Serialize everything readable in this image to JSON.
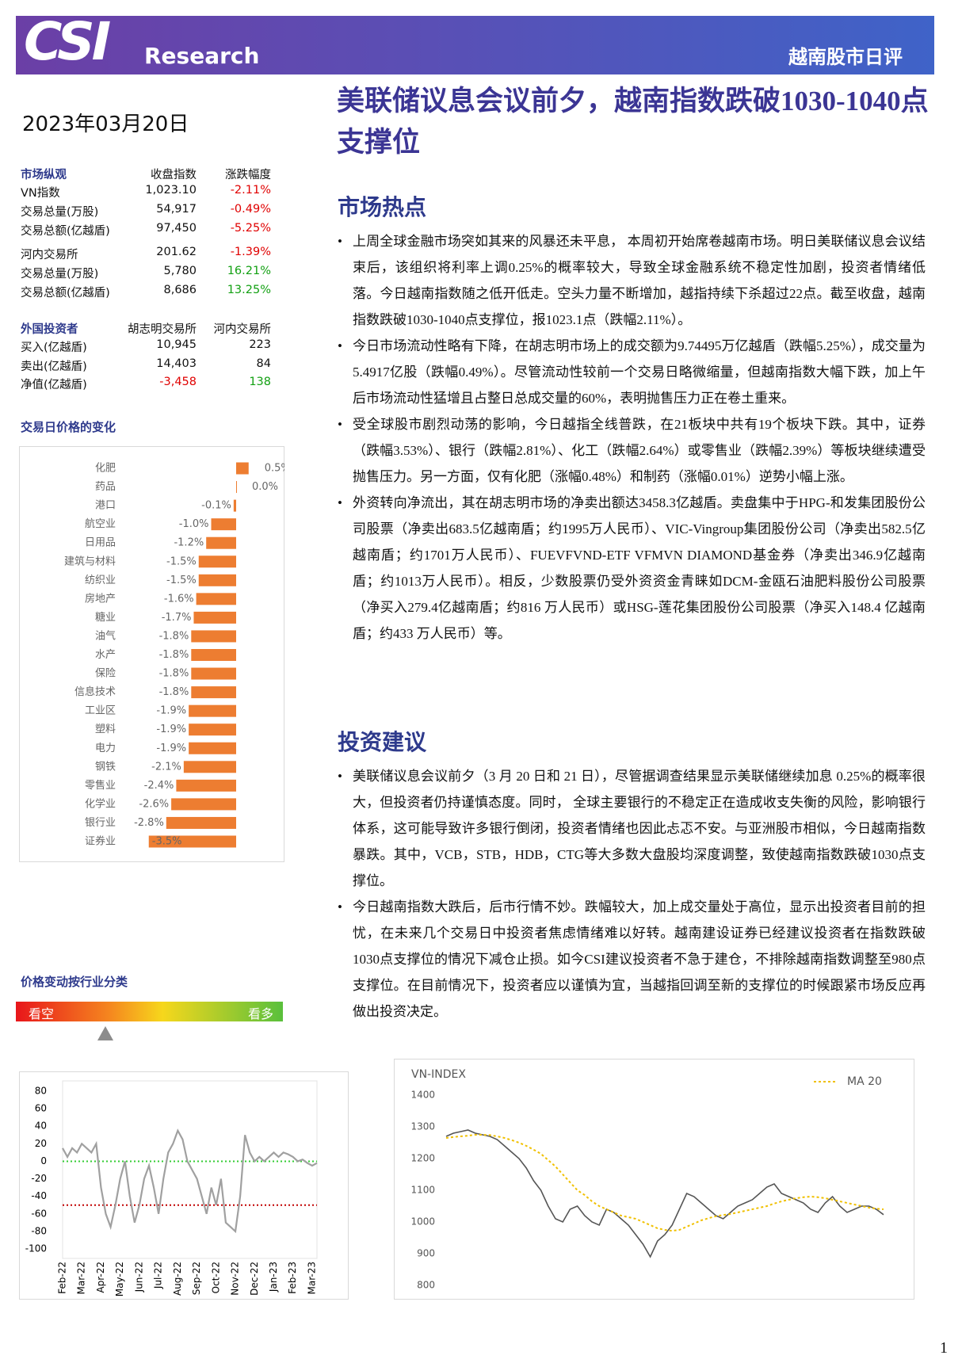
{
  "header": {
    "logo": "CSI",
    "brand": "Research",
    "report": "越南股市日评"
  },
  "date": "2023年03月20日",
  "title": "美联储议息会议前夕，越南指数跌破1030-1040点支撑位",
  "market_table": {
    "header": [
      "市场纵观",
      "收盘指数",
      "涨跌幅度"
    ],
    "rows": [
      [
        "VN指数",
        "1,023.10",
        "-2.11%"
      ],
      [
        "交易总量(万股)",
        "54,917",
        "-0.49%"
      ],
      [
        "交易总额(亿越盾)",
        "97,450",
        "-5.25%"
      ],
      [
        "河内交易所",
        "201.62",
        "-1.39%"
      ],
      [
        "交易总量(万股)",
        "5,780",
        "16.21%"
      ],
      [
        "交易总额(亿越盾)",
        "8,686",
        "13.25%"
      ]
    ]
  },
  "foreign_table": {
    "header": [
      "外国投资者",
      "胡志明交易所",
      "河内交易所"
    ],
    "rows": [
      [
        "买入(亿越盾)",
        "10,945",
        "223"
      ],
      [
        "卖出(亿越盾)",
        "14,403",
        "84"
      ],
      [
        "净值(亿越盾)",
        "-3,458",
        "138"
      ]
    ]
  },
  "sections": [
    {
      "heading": "市场热点",
      "bullets": [
        "上周全球金融市场突如其来的风暴还未平息， 本周初开始席卷越南市场。明日美联储议息会议结束后，该组织将利率上调0.25%的概率较大，导致全球金融系统不稳定性加剧，投资者情绪低落。今日越南指数随之低开低走。空头力量不断增加，越指持续下杀超过22点。截至收盘，越南指数跌破1030-1040点支撑位，报1023.1点（跌幅2.11%）。",
        "今日市场流动性略有下降，在胡志明市场上的成交额为9.74495万亿越盾（跌幅5.25%），成交量为5.4917亿股（跌幅0.49%）。尽管流动性较前一个交易日略微缩量，但越南指数大幅下跌，加上午后市场流动性猛增且占整日总成交量的60%，表明抛售压力正在卷土重来。",
        "受全球股市剧烈动荡的影响，今日越指全线普跌，在21板块中共有19个板块下跌。其中，证券（跌幅3.53%）、银行（跌幅2.81%）、化工（跌幅2.64%）或零售业（跌幅2.39%）等板块继续遭受抛售压力。另一方面，仅有化肥（涨幅0.48%）和制药（涨幅0.01%）逆势小幅上涨。",
        "外资转向净流出，其在胡志明市场的净卖出额达3458.3亿越盾。卖盘集中于HPG-和发集团股份公司股票（净卖出683.5亿越南盾；约1995万人民币）、VIC-Vingroup集团股份公司（净卖出582.5亿越南盾；约1701万人民币）、FUEVFVND-ETF VFMVN DIAMOND基金券（净卖出346.9亿越南盾；约1013万人民币）。相反，少数股票仍受外资资金青睐如DCM-金瓯石油肥料股份公司股票（净买入279.4亿越南盾；约816 万人民币）或HSG-莲花集团股份公司股票（净买入148.4 亿越南盾；约433 万人民币）等。"
      ]
    },
    {
      "heading": "投资建议",
      "bullets": [
        "美联储议息会议前夕（3 月 20 日和 21 日），尽管据调查结果显示美联储继续加息 0.25%的概率很大，但投资者仍持谨慎态度。同时， 全球主要银行的不稳定正在造成收支失衡的风险，影响银行体系，这可能导致许多银行倒闭，投资者情绪也因此忐忑不安。与亚洲股市相似，今日越南指数暴跌。其中，VCB，STB，HDB，CTG等大多数大盘股均深度调整，致使越南指数跌破1030点支撑位。",
        "今日越南指数大跌后，后市行情不妙。跌幅较大，加上成交量处于高位，显示出投资者目前的担忧，在未来几个交易日中投资者焦虑情绪难以好转。越南建设证券已经建议投资者在指数跌破1030点支撑位的情况下减仓止损。如今CSI建议投资者不急于建仓，不排除越南指数调整至980点支撑位。在目前情况下，投资者应以谨慎为宜，当越指回调至新的支撑位的时候跟紧市场反应再做出投资决定。"
      ]
    }
  ],
  "sentiment": {
    "title": "价格变动按行业分类",
    "left": "看空",
    "right": "看多"
  },
  "page_number": 1,
  "chart_data": [
    {
      "type": "hbar",
      "title": "交易日价格的变化",
      "color": "#ed7d31",
      "categories": [
        "化肥",
        "药品",
        "港口",
        "航空业",
        "日用品",
        "建筑与材料",
        "纺织业",
        "房地产",
        "糖业",
        "油气",
        "水产",
        "保险",
        "信息技术",
        "工业区",
        "塑料",
        "电力",
        "钢铁",
        "零售业",
        "化学业",
        "银行业",
        "证券业"
      ],
      "values": [
        0.5,
        0.0,
        -0.1,
        -1.0,
        -1.2,
        -1.5,
        -1.5,
        -1.6,
        -1.7,
        -1.8,
        -1.8,
        -1.8,
        -1.8,
        -1.9,
        -1.9,
        -1.9,
        -2.1,
        -2.4,
        -2.6,
        -2.8,
        -3.5
      ],
      "value_labels": [
        "0.5%",
        "0.0%",
        "-0.1%",
        "-1.0%",
        "-1.2%",
        "-1.5%",
        "-1.5%",
        "-1.6%",
        "-1.7%",
        "-1.8%",
        "-1.8%",
        "-1.8%",
        "-1.8%",
        "-1.9%",
        "-1.9%",
        "-1.9%",
        "-2.1%",
        "-2.4%",
        "-2.6%",
        "-2.8%",
        "-3.5%"
      ]
    },
    {
      "type": "line",
      "color": "#a0a0a0",
      "categories": [
        "Feb-22",
        null,
        null,
        null,
        "Mar-22",
        null,
        null,
        null,
        "Apr-22",
        null,
        null,
        null,
        "May-22",
        null,
        null,
        null,
        "Jun-22",
        null,
        null,
        null,
        "Jul-22",
        null,
        null,
        null,
        "Aug-22",
        null,
        null,
        null,
        "Sep-22",
        null,
        null,
        null,
        "Oct-22",
        null,
        null,
        null,
        "Nov-22",
        null,
        null,
        null,
        "Dec-22",
        null,
        null,
        null,
        "Jan-23",
        null,
        null,
        null,
        "Feb-23",
        null,
        null,
        null,
        "Mar-23",
        null
      ],
      "values": [
        15,
        5,
        15,
        10,
        20,
        15,
        10,
        20,
        -30,
        -60,
        -75,
        -50,
        -20,
        0,
        -40,
        -70,
        -50,
        -20,
        -5,
        -30,
        -60,
        -20,
        10,
        20,
        35,
        25,
        0,
        -10,
        -20,
        -40,
        -60,
        -30,
        -50,
        -20,
        -70,
        -75,
        -80,
        -40,
        30,
        10,
        0,
        5,
        0,
        5,
        10,
        5,
        10,
        8,
        5,
        0,
        2,
        -2,
        -5,
        -2
      ],
      "ylim": [
        -100,
        80
      ],
      "yticks": [
        80,
        60,
        40,
        20,
        0,
        -20,
        -40,
        -60,
        -80,
        -100
      ],
      "reference_lines": [
        {
          "value": 0,
          "color": "#33cc33"
        },
        {
          "value": -50,
          "color": "#c00000"
        }
      ]
    },
    {
      "type": "line",
      "title": "VN-INDEX",
      "ylim": [
        800,
        1400
      ],
      "yticks": [
        1400,
        1300,
        1200,
        1100,
        1000,
        900,
        800
      ],
      "legend": "top-right",
      "series": [
        {
          "color": "#555555",
          "values": [
            1270,
            1280,
            1285,
            1290,
            1280,
            1275,
            1270,
            1260,
            1240,
            1220,
            1200,
            1170,
            1130,
            1100,
            1050,
            1010,
            1000,
            1040,
            1050,
            1020,
            1000,
            990,
            1040,
            1030,
            1010,
            990,
            960,
            930,
            890,
            940,
            960,
            990,
            1040,
            1090,
            1080,
            1060,
            1040,
            1020,
            1010,
            1030,
            1050,
            1060,
            1070,
            1090,
            1110,
            1120,
            1090,
            1080,
            1070,
            1060,
            1040,
            1030,
            1060,
            1080,
            1050,
            1030,
            1040,
            1050,
            1050,
            1040,
            1023
          ]
        },
        {
          "name": "MA 20",
          "color": "#f0c000",
          "style": "dashed",
          "values": [
            1265,
            1268,
            1270,
            1272,
            1275,
            1275,
            1274,
            1270,
            1265,
            1258,
            1250,
            1240,
            1228,
            1215,
            1195,
            1175,
            1150,
            1125,
            1100,
            1085,
            1065,
            1050,
            1040,
            1030,
            1020,
            1015,
            1010,
            1000,
            990,
            980,
            975,
            972,
            975,
            985,
            995,
            1005,
            1012,
            1018,
            1022,
            1025,
            1030,
            1035,
            1040,
            1045,
            1050,
            1058,
            1065,
            1070,
            1075,
            1078,
            1080,
            1078,
            1075,
            1070,
            1065,
            1060,
            1055,
            1050,
            1045,
            1042,
            1040
          ]
        }
      ]
    }
  ]
}
